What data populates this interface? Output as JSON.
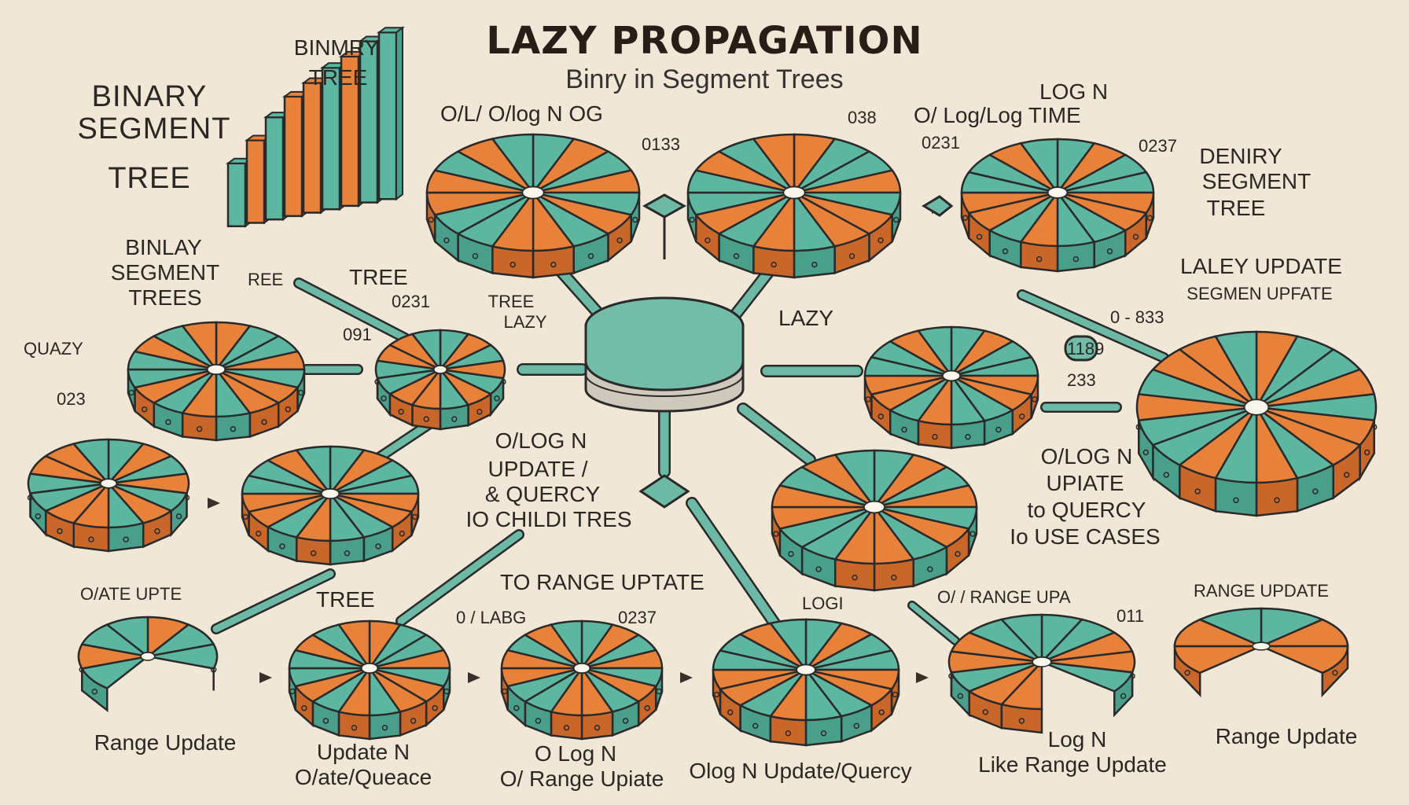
{
  "title": "LAZY PROPAGATION",
  "subtitle": "Binry      in Segment Trees",
  "colors": {
    "background": "#f1e7d6",
    "teal": "#5cb6a0",
    "orange": "#e8813a",
    "outline": "#2a2a2a",
    "arrow": "#6cbaa6"
  },
  "hub": {
    "label": "LAZY"
  },
  "labels": {
    "binary_segment_tree_l1": "BINARY",
    "binary_segment_tree_l2": "SEGMENT",
    "binary_segment_tree_l3": "TREE",
    "binmry_l1": "BINMRY",
    "binmry_l2": "TREE",
    "binlay_l1": "BINLAY",
    "binlay_l2": "SEGMENT",
    "binlay_l3": "TREES",
    "ree": "REE",
    "tree_top": "TREE",
    "num_0231": "0231",
    "tree_lazy_l1": "TREE",
    "tree_lazy_l2": "LAZY",
    "lazy_mid": "LAZY",
    "quazy": "QUAZY",
    "num_023_left": "023",
    "num_091": "091",
    "olog_top_left": "O/L/  O/log N  OG",
    "num_0133": "0133",
    "log_n_top": "LOG N",
    "log_time": "O/ Log/Log  TIME",
    "num_038": "038",
    "num_0231_b": "0231",
    "num_0237": "0237",
    "deniry_l1": "DENIRY",
    "deniry_l2": "SEGMENT",
    "deniry_l3": "TREE",
    "laley_update": "LALEY UPDATE",
    "segmen_upfate": "SEGMEN UPFATE",
    "num_833": "0 - 833",
    "num_1189": "1189",
    "num_233": "233",
    "center_l1": "O/LOG N",
    "center_l2": "UPDATE /",
    "center_l3": "& QUERCY",
    "center_l4": "IO CHILDI TRES",
    "right_l1": "O/LOG N",
    "right_l2": "UPIATE",
    "right_l3": "to QUERCY",
    "right_l4": "Io USE CASES",
    "oiate_upte": "O/ATE  UPTE",
    "tree_low": "TREE",
    "to_range_update": "TO RANGE UPTATE",
    "labg": "0 / LABG",
    "num_0237_low": "0237",
    "logi": "LOGI",
    "range_upa": "O/ / RANGE UPA",
    "num_011": "011",
    "range_update_top_right": "RANGE UPDATE",
    "range_update_b1": "Range Update",
    "update_n_l1": "Update N",
    "update_n_l2": "O/ate/Queace",
    "olog_range_l1": "O Log N",
    "olog_range_l2": "O/ Range Upiate",
    "olog_update_quercy": "Olog N Update/Quercy",
    "log_n_like_l1": "Log N",
    "log_n_like_l2": "Like Range Update",
    "range_update_b6": "Range Update"
  }
}
